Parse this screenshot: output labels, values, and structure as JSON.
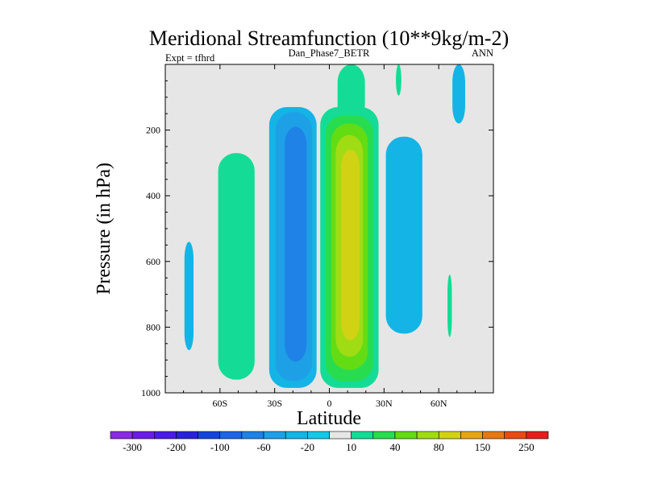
{
  "chart_data": {
    "type": "heatmap",
    "title": "Meridional Streamfunction (10**9kg/m-2)",
    "left_label": "Expt = tfhrd",
    "center_label": "Dan_Phase7_BETR",
    "right_label": "ANN",
    "xlabel": "Latitude",
    "ylabel": "Pressure (in hPa)",
    "xlim": [
      -90,
      90
    ],
    "ylim": [
      1000,
      0
    ],
    "x_ticks": [
      {
        "value": -60,
        "label": "60S"
      },
      {
        "value": -30,
        "label": "30S"
      },
      {
        "value": 0,
        "label": "0"
      },
      {
        "value": 30,
        "label": "30N"
      },
      {
        "value": 60,
        "label": "60N"
      }
    ],
    "y_ticks": [
      {
        "value": 200,
        "label": "200"
      },
      {
        "value": 400,
        "label": "400"
      },
      {
        "value": 600,
        "label": "600"
      },
      {
        "value": 800,
        "label": "800"
      },
      {
        "value": 1000,
        "label": "1000"
      }
    ],
    "background_color": "#e6e6e6",
    "contour_levels": [
      -300,
      -250,
      -200,
      -150,
      -100,
      -80,
      -60,
      -40,
      -20,
      -10,
      10,
      20,
      40,
      60,
      80,
      100,
      150,
      200,
      250,
      300
    ],
    "colorbar": {
      "colors": [
        "#8a2be2",
        "#6a1de6",
        "#4a1ce6",
        "#2a22d6",
        "#1446dc",
        "#1e64e6",
        "#1e82e6",
        "#1ea0e6",
        "#14b4e6",
        "#14c8e6",
        "#e6e6e6",
        "#14dc96",
        "#28dc50",
        "#64dc14",
        "#a0dc14",
        "#d2d214",
        "#e6a514",
        "#e67814",
        "#e64b14",
        "#e61e1e"
      ],
      "labels": [
        {
          "boundary_index": 0,
          "text": "-300"
        },
        {
          "boundary_index": 2,
          "text": "-200"
        },
        {
          "boundary_index": 4,
          "text": "-100"
        },
        {
          "boundary_index": 6,
          "text": "-60"
        },
        {
          "boundary_index": 8,
          "text": "-20"
        },
        {
          "boundary_index": 10,
          "text": "10"
        },
        {
          "boundary_index": 12,
          "text": "40"
        },
        {
          "boundary_index": 14,
          "text": "80"
        },
        {
          "boundary_index": 16,
          "text": "150"
        },
        {
          "boundary_index": 18,
          "text": "250"
        }
      ]
    },
    "cells": [
      {
        "name": "cell-sh-subtropical-weak-negative",
        "lat_center": -77,
        "lat_halfwidth": 2.5,
        "p_top": 540,
        "p_bottom": 870,
        "color": "#14b4e6",
        "level": "-20 to -10"
      },
      {
        "name": "cell-sh-ferrel-positive",
        "lat_center": -51,
        "lat_halfwidth": 10,
        "p_top": 270,
        "p_bottom": 960,
        "color": "#14dc96",
        "level": "10 to 20"
      },
      {
        "name": "cell-sh-hadley-negative-outer",
        "lat_center": -20,
        "lat_halfwidth": 13,
        "p_top": 130,
        "p_bottom": 985,
        "color": "#14b4e6",
        "level": "-20 to -10"
      },
      {
        "name": "cell-sh-hadley-negative-mid",
        "lat_center": -19.5,
        "lat_halfwidth": 10,
        "p_top": 145,
        "p_bottom": 965,
        "color": "#1ea0e6",
        "level": "-40 to -20"
      },
      {
        "name": "cell-sh-hadley-negative-core",
        "lat_center": -18.5,
        "lat_halfwidth": 6,
        "p_top": 190,
        "p_bottom": 905,
        "color": "#1e82e6",
        "level": "-60 to -40"
      },
      {
        "name": "cell-nh-hadley-positive-upper-plume",
        "lat_center": 12,
        "lat_halfwidth": 7.5,
        "p_top": 0,
        "p_bottom": 180,
        "color": "#14dc96",
        "level": "10 to 20"
      },
      {
        "name": "cell-nh-hadley-positive-outer",
        "lat_center": 11,
        "lat_halfwidth": 16,
        "p_top": 130,
        "p_bottom": 985,
        "color": "#14dc96",
        "level": "10 to 20"
      },
      {
        "name": "cell-nh-hadley-positive-l2",
        "lat_center": 11,
        "lat_halfwidth": 13,
        "p_top": 155,
        "p_bottom": 965,
        "color": "#28dc50",
        "level": "20 to 40"
      },
      {
        "name": "cell-nh-hadley-positive-l3",
        "lat_center": 11,
        "lat_halfwidth": 10,
        "p_top": 180,
        "p_bottom": 930,
        "color": "#64dc14",
        "level": "40 to 60"
      },
      {
        "name": "cell-nh-hadley-positive-l4",
        "lat_center": 11,
        "lat_halfwidth": 7.5,
        "p_top": 215,
        "p_bottom": 890,
        "color": "#a0dc14",
        "level": "60 to 80"
      },
      {
        "name": "cell-nh-hadley-positive-core",
        "lat_center": 11.5,
        "lat_halfwidth": 5,
        "p_top": 260,
        "p_bottom": 840,
        "color": "#d2d214",
        "level": "80 to 100"
      },
      {
        "name": "cell-nh-ferrel-negative",
        "lat_center": 41,
        "lat_halfwidth": 10,
        "p_top": 220,
        "p_bottom": 820,
        "color": "#14b4e6",
        "level": "-20 to -10"
      },
      {
        "name": "cell-nh-polar-negative-top",
        "lat_center": 71,
        "lat_halfwidth": 3.5,
        "p_top": 0,
        "p_bottom": 180,
        "color": "#14b4e6",
        "level": "-20 to -10"
      },
      {
        "name": "cell-nh-polar-positive-small",
        "lat_center": 66,
        "lat_halfwidth": 1.2,
        "p_top": 640,
        "p_bottom": 830,
        "color": "#14dc96",
        "level": "10 to 20"
      },
      {
        "name": "cell-nh-upper-positive-small",
        "lat_center": 38,
        "lat_halfwidth": 1.5,
        "p_top": 0,
        "p_bottom": 95,
        "color": "#14dc96",
        "level": "10 to 20"
      }
    ]
  }
}
